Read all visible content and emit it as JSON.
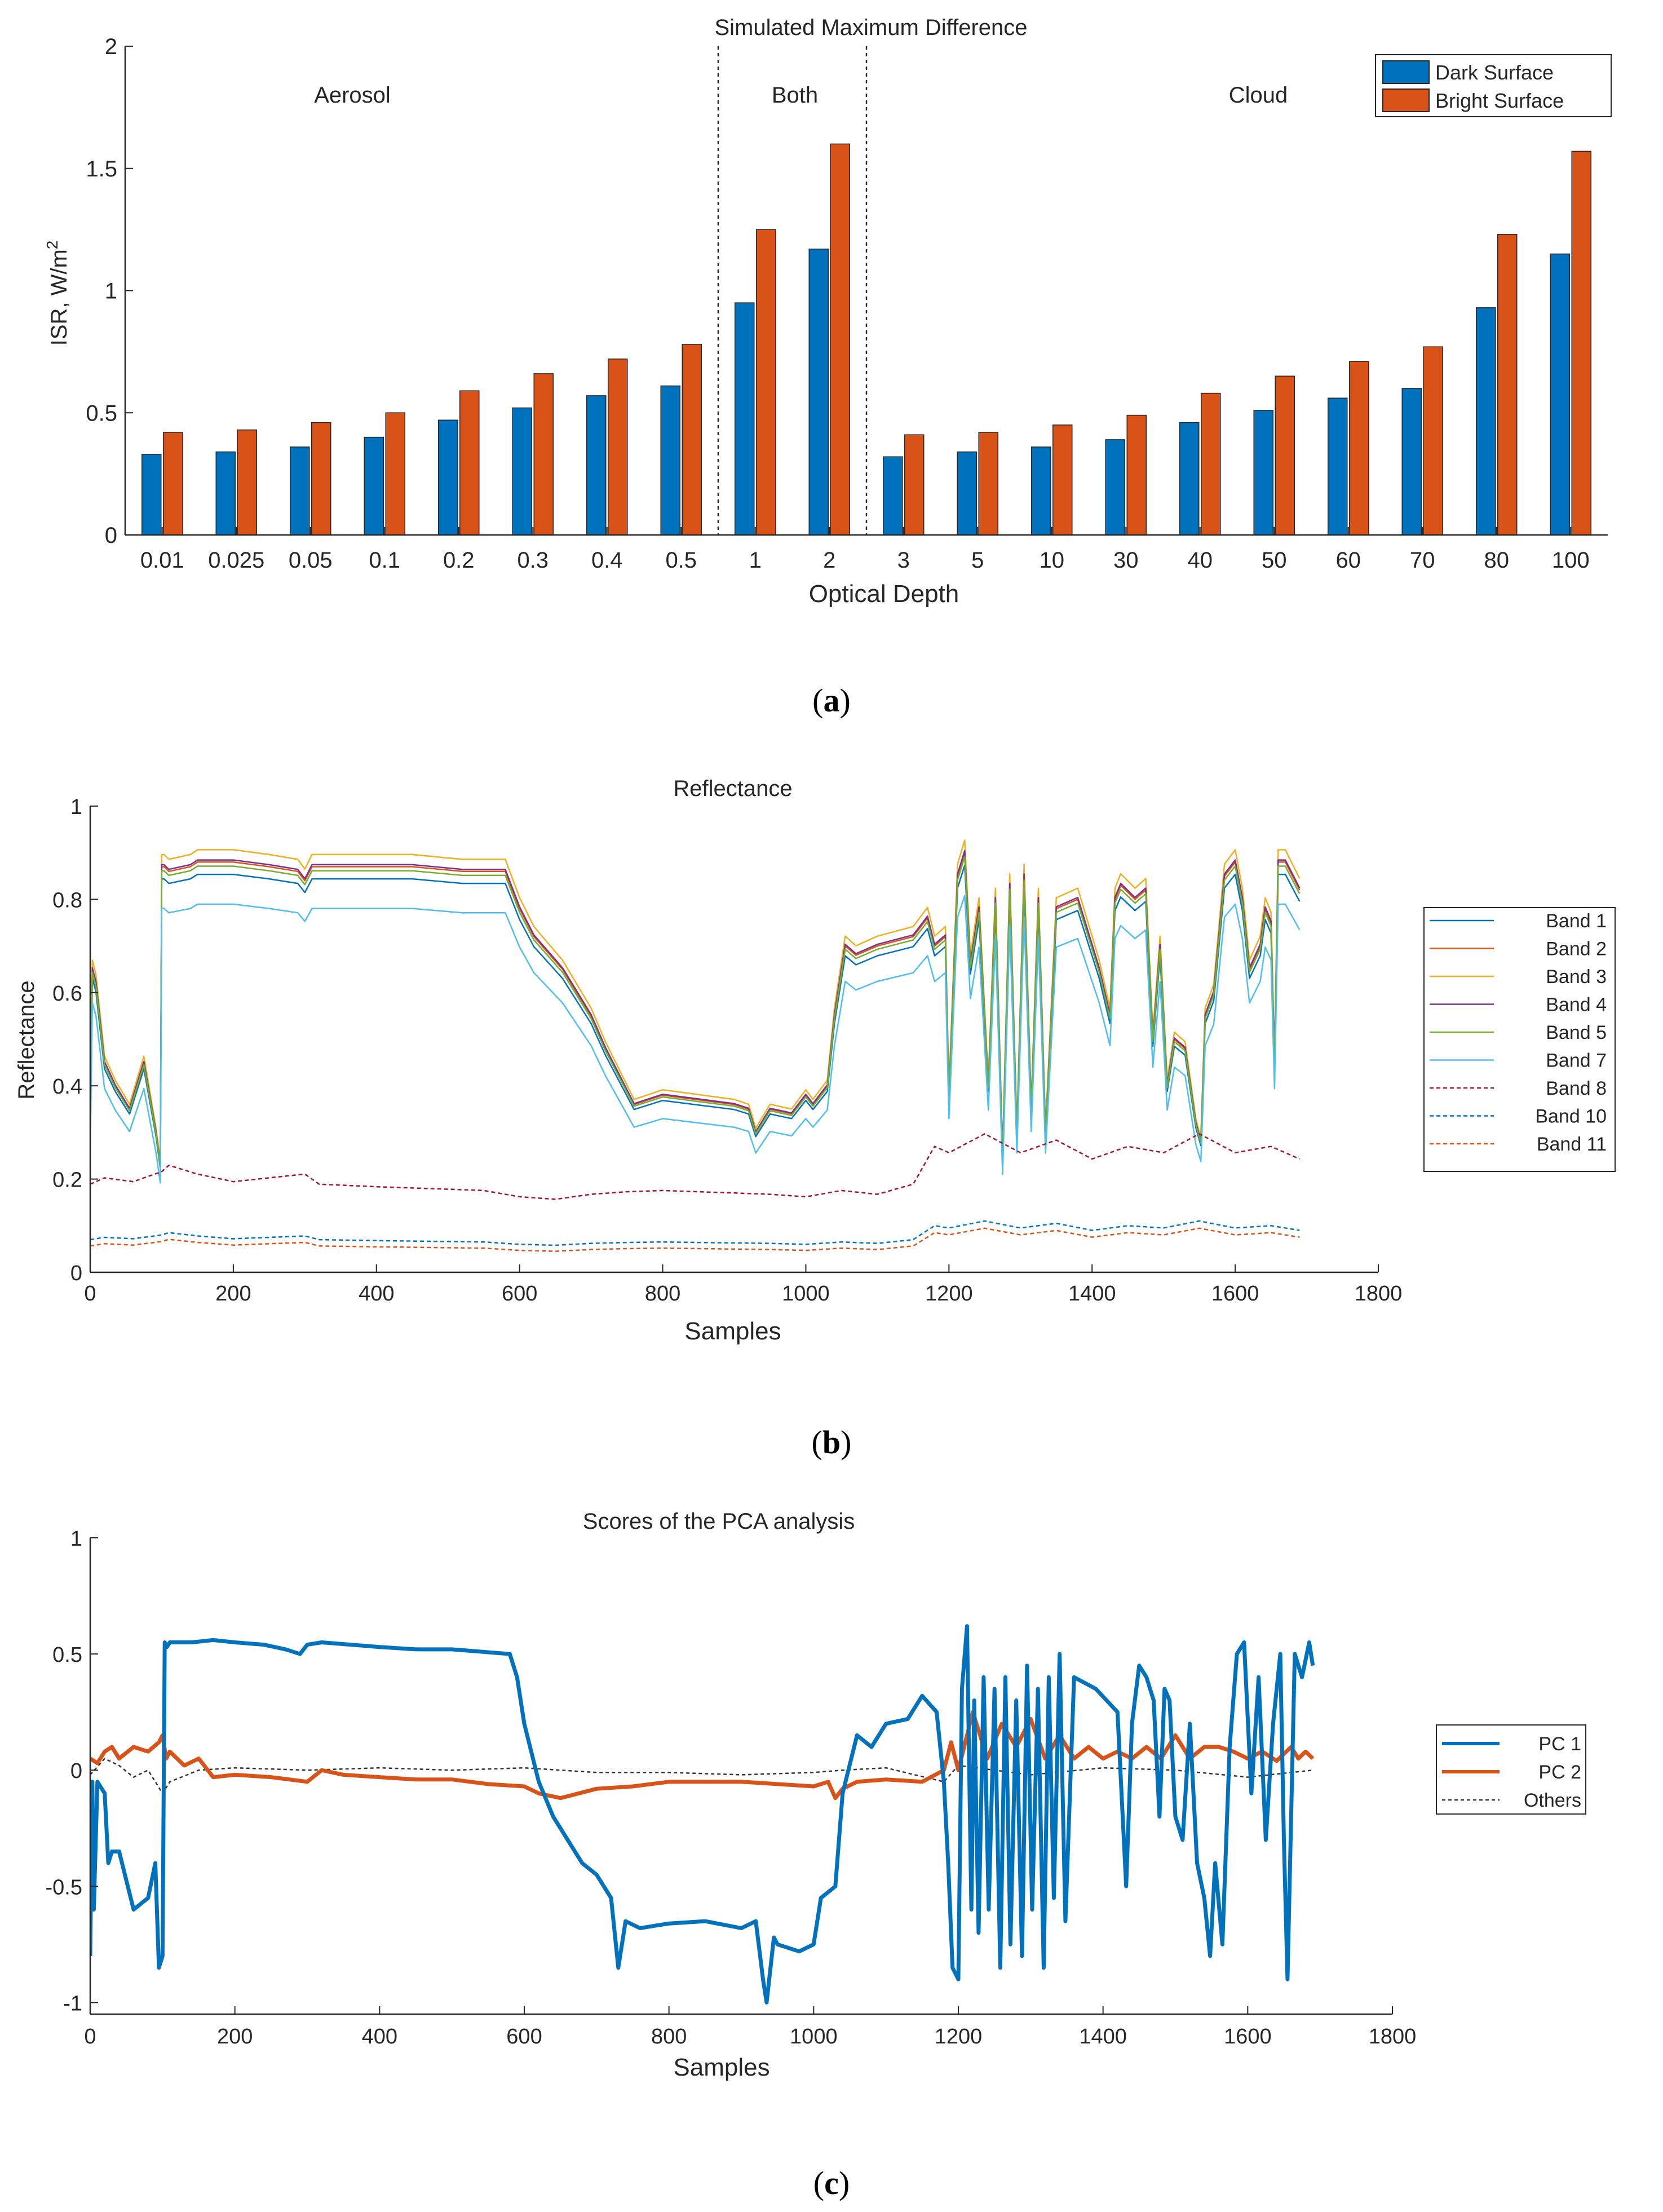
{
  "colors": {
    "blue": "#0072BD",
    "orange": "#D95319",
    "axis": "#262626",
    "band_1": "#0072BD",
    "band_2": "#D95319",
    "band_3": "#EDB120",
    "band_4": "#7E2F8E",
    "band_5": "#77AC30",
    "band_7": "#4DBEEE",
    "band_8": "#A2142F",
    "band_10": "#0072BD",
    "band_11": "#D95319",
    "others": "#333333"
  },
  "chart_data": [
    {
      "type": "bar",
      "title": "Simulated Maximum Difference",
      "xlabel": "Optical Depth",
      "ylabel": "ISR, W/m",
      "ylabel_superscript": "2",
      "ylim": [
        0,
        2
      ],
      "yticks": [
        "0",
        "0.5",
        "1",
        "1.5",
        "2"
      ],
      "categories": [
        "0.01",
        "0.025",
        "0.05",
        "0.1",
        "0.2",
        "0.3",
        "0.4",
        "0.5",
        "1",
        "2",
        "3",
        "5",
        "10",
        "30",
        "40",
        "50",
        "60",
        "70",
        "80",
        "100"
      ],
      "series": [
        {
          "name": "Dark Surface",
          "values": [
            0.33,
            0.34,
            0.36,
            0.4,
            0.47,
            0.52,
            0.57,
            0.61,
            0.95,
            1.17,
            0.32,
            0.34,
            0.36,
            0.39,
            0.46,
            0.51,
            0.56,
            0.6,
            0.93,
            1.15
          ]
        },
        {
          "name": "Bright Surface",
          "values": [
            0.42,
            0.43,
            0.46,
            0.5,
            0.59,
            0.66,
            0.72,
            0.78,
            1.25,
            1.6,
            0.41,
            0.42,
            0.45,
            0.49,
            0.58,
            0.65,
            0.71,
            0.77,
            1.23,
            1.57
          ]
        }
      ],
      "region_labels": [
        "Aerosol",
        "Both",
        "Cloud"
      ],
      "region_dividers_after_category": [
        7,
        9
      ],
      "legend_position": "top-right",
      "grid": false,
      "caption": "a"
    },
    {
      "type": "line",
      "title": "Reflectance",
      "xlabel": "Samples",
      "ylabel": "Reflectance",
      "xlim": [
        0,
        1800
      ],
      "ylim": [
        0,
        1
      ],
      "xticks": [
        "0",
        "200",
        "400",
        "600",
        "800",
        "1000",
        "1200",
        "1400",
        "1600",
        "1800"
      ],
      "yticks": [
        "0",
        "0.2",
        "0.4",
        "0.6",
        "0.8",
        "1"
      ],
      "legend_position": "outside-right",
      "grid": false,
      "caption": "b",
      "base_profile": {
        "x": [
          0,
          3,
          8,
          20,
          35,
          55,
          75,
          92,
          98,
          100,
          103,
          110,
          140,
          150,
          170,
          200,
          250,
          290,
          300,
          310,
          330,
          380,
          450,
          520,
          580,
          600,
          620,
          660,
          700,
          720,
          740,
          760,
          800,
          850,
          900,
          920,
          930,
          950,
          980,
          1000,
          1010,
          1030,
          1040,
          1055,
          1070,
          1100,
          1150,
          1170,
          1180,
          1195,
          1200,
          1212,
          1222,
          1230,
          1242,
          1255,
          1265,
          1275,
          1285,
          1295,
          1305,
          1315,
          1325,
          1335,
          1350,
          1380,
          1410,
          1425,
          1432,
          1440,
          1460,
          1475,
          1485,
          1495,
          1500,
          1505,
          1515,
          1530,
          1545,
          1552,
          1558,
          1570,
          1585,
          1600,
          1610,
          1620,
          1635,
          1642,
          1650,
          1655,
          1660,
          1670,
          1680,
          1690
        ],
        "y": [
          0.3,
          0.65,
          0.62,
          0.45,
          0.4,
          0.35,
          0.45,
          0.3,
          0.23,
          0.87,
          0.87,
          0.86,
          0.87,
          0.88,
          0.88,
          0.88,
          0.87,
          0.86,
          0.84,
          0.87,
          0.87,
          0.87,
          0.87,
          0.86,
          0.86,
          0.78,
          0.72,
          0.65,
          0.55,
          0.48,
          0.42,
          0.36,
          0.38,
          0.37,
          0.36,
          0.35,
          0.3,
          0.35,
          0.34,
          0.38,
          0.36,
          0.4,
          0.55,
          0.7,
          0.68,
          0.7,
          0.72,
          0.76,
          0.7,
          0.72,
          0.38,
          0.85,
          0.9,
          0.66,
          0.78,
          0.4,
          0.8,
          0.25,
          0.83,
          0.3,
          0.85,
          0.35,
          0.8,
          0.3,
          0.78,
          0.8,
          0.65,
          0.55,
          0.8,
          0.83,
          0.8,
          0.82,
          0.5,
          0.7,
          0.55,
          0.4,
          0.5,
          0.48,
          0.32,
          0.28,
          0.55,
          0.6,
          0.85,
          0.88,
          0.8,
          0.65,
          0.7,
          0.78,
          0.75,
          0.45,
          0.88,
          0.88,
          0.85,
          0.82
        ]
      },
      "low_profile": {
        "x": [
          0,
          20,
          60,
          100,
          110,
          150,
          200,
          300,
          320,
          400,
          500,
          550,
          600,
          650,
          700,
          750,
          800,
          850,
          900,
          950,
          1000,
          1050,
          1100,
          1150,
          1180,
          1200,
          1250,
          1300,
          1350,
          1400,
          1450,
          1500,
          1550,
          1600,
          1650,
          1690
        ],
        "y": [
          0.7,
          0.75,
          0.72,
          0.8,
          0.85,
          0.78,
          0.72,
          0.78,
          0.7,
          0.68,
          0.66,
          0.65,
          0.6,
          0.58,
          0.62,
          0.64,
          0.65,
          0.64,
          0.63,
          0.62,
          0.6,
          0.65,
          0.62,
          0.7,
          1.0,
          0.95,
          1.1,
          0.95,
          1.05,
          0.9,
          1.0,
          0.95,
          1.1,
          0.95,
          1.0,
          0.9
        ]
      },
      "series": [
        {
          "name": "Band 1",
          "style": "solid",
          "scale": 0.97,
          "offset": 0.0
        },
        {
          "name": "Band 2",
          "style": "solid",
          "scale": 1.0,
          "offset": 0.0
        },
        {
          "name": "Band 3",
          "style": "solid",
          "scale": 1.03,
          "offset": 0.0
        },
        {
          "name": "Band 4",
          "style": "solid",
          "scale": 1.005,
          "offset": 0.0
        },
        {
          "name": "Band 5",
          "style": "solid",
          "scale": 0.99,
          "offset": 0.0
        },
        {
          "name": "Band 7",
          "style": "solid",
          "scale": 0.92,
          "offset": -0.02
        },
        {
          "name": "Band 8",
          "style": "dashed",
          "scale": 0.27,
          "offset": 0.0
        },
        {
          "name": "Band 10",
          "style": "dashed",
          "scale": 0.1,
          "offset": 0.0
        },
        {
          "name": "Band 11",
          "style": "dashed",
          "scale": 0.095,
          "offset": -0.01
        }
      ]
    },
    {
      "type": "line",
      "title": "Scores of the PCA analysis",
      "xlabel": "Samples",
      "ylabel": "",
      "xlim": [
        0,
        1800
      ],
      "ylim": [
        -1.05,
        1
      ],
      "xticks": [
        "0",
        "200",
        "400",
        "600",
        "800",
        "1000",
        "1200",
        "1400",
        "1600",
        "1800"
      ],
      "yticks": [
        "-1",
        "-0.5",
        "0",
        "0.5",
        "1"
      ],
      "legend_position": "outside-right",
      "grid": false,
      "caption": "c",
      "series": [
        {
          "name": "PC 1",
          "style": "thick",
          "x": [
            0,
            3,
            5,
            10,
            20,
            25,
            30,
            40,
            60,
            80,
            90,
            95,
            100,
            103,
            106,
            110,
            140,
            170,
            200,
            240,
            270,
            290,
            300,
            320,
            360,
            400,
            450,
            500,
            540,
            580,
            590,
            600,
            620,
            640,
            660,
            680,
            700,
            720,
            730,
            740,
            760,
            800,
            850,
            900,
            920,
            930,
            935,
            945,
            950,
            980,
            1000,
            1010,
            1030,
            1040,
            1060,
            1080,
            1100,
            1130,
            1150,
            1170,
            1180,
            1186,
            1192,
            1200,
            1205,
            1212,
            1218,
            1222,
            1228,
            1235,
            1242,
            1250,
            1258,
            1265,
            1272,
            1280,
            1288,
            1295,
            1302,
            1310,
            1318,
            1325,
            1332,
            1340,
            1348,
            1360,
            1390,
            1420,
            1432,
            1440,
            1450,
            1460,
            1470,
            1478,
            1485,
            1492,
            1500,
            1510,
            1520,
            1530,
            1540,
            1548,
            1555,
            1565,
            1575,
            1585,
            1595,
            1605,
            1615,
            1625,
            1635,
            1645,
            1650,
            1655,
            1665,
            1675,
            1685,
            1690
          ],
          "y": [
            -0.8,
            -0.05,
            -0.6,
            -0.05,
            -0.1,
            -0.4,
            -0.35,
            -0.35,
            -0.6,
            -0.55,
            -0.4,
            -0.85,
            -0.8,
            0.55,
            0.53,
            0.55,
            0.55,
            0.56,
            0.55,
            0.54,
            0.52,
            0.5,
            0.54,
            0.55,
            0.54,
            0.53,
            0.52,
            0.52,
            0.51,
            0.5,
            0.4,
            0.2,
            -0.05,
            -0.2,
            -0.3,
            -0.4,
            -0.45,
            -0.55,
            -0.85,
            -0.65,
            -0.68,
            -0.66,
            -0.65,
            -0.68,
            -0.65,
            -0.9,
            -1.0,
            -0.72,
            -0.75,
            -0.78,
            -0.75,
            -0.55,
            -0.5,
            -0.1,
            0.15,
            0.1,
            0.2,
            0.22,
            0.32,
            0.25,
            -0.05,
            -0.4,
            -0.85,
            -0.9,
            0.35,
            0.62,
            -0.6,
            0.3,
            -0.7,
            0.4,
            -0.6,
            0.35,
            -0.85,
            0.4,
            -0.75,
            0.3,
            -0.8,
            0.45,
            -0.6,
            0.35,
            -0.85,
            0.4,
            -0.55,
            0.5,
            -0.65,
            0.4,
            0.35,
            0.25,
            -0.5,
            0.2,
            0.45,
            0.4,
            0.3,
            -0.2,
            0.35,
            0.3,
            -0.2,
            -0.3,
            0.2,
            -0.4,
            -0.55,
            -0.8,
            -0.4,
            -0.75,
            0.1,
            0.5,
            0.55,
            -0.1,
            0.4,
            -0.3,
            0.2,
            0.5,
            -0.3,
            -0.9,
            0.5,
            0.4,
            0.55,
            0.45
          ]
        },
        {
          "name": "PC 2",
          "style": "thick",
          "x": [
            0,
            10,
            20,
            30,
            40,
            60,
            80,
            95,
            100,
            105,
            110,
            130,
            150,
            170,
            200,
            250,
            300,
            320,
            350,
            400,
            450,
            500,
            550,
            600,
            620,
            650,
            700,
            750,
            800,
            850,
            900,
            950,
            1000,
            1020,
            1030,
            1040,
            1060,
            1100,
            1150,
            1180,
            1190,
            1200,
            1220,
            1240,
            1260,
            1280,
            1300,
            1320,
            1340,
            1360,
            1380,
            1400,
            1420,
            1440,
            1460,
            1480,
            1500,
            1520,
            1540,
            1560,
            1580,
            1600,
            1620,
            1640,
            1660,
            1670,
            1680,
            1690
          ],
          "y": [
            0.05,
            0.03,
            0.08,
            0.1,
            0.05,
            0.1,
            0.08,
            0.12,
            0.15,
            0.05,
            0.08,
            0.02,
            0.05,
            -0.03,
            -0.02,
            -0.03,
            -0.05,
            0.0,
            -0.02,
            -0.03,
            -0.04,
            -0.04,
            -0.06,
            -0.07,
            -0.1,
            -0.12,
            -0.08,
            -0.07,
            -0.05,
            -0.05,
            -0.05,
            -0.06,
            -0.07,
            -0.05,
            -0.12,
            -0.08,
            -0.05,
            -0.04,
            -0.05,
            0.0,
            0.12,
            0.0,
            0.25,
            0.05,
            0.2,
            0.1,
            0.22,
            0.05,
            0.15,
            0.05,
            0.1,
            0.05,
            0.08,
            0.05,
            0.1,
            0.05,
            0.15,
            0.05,
            0.1,
            0.1,
            0.08,
            0.05,
            0.08,
            0.04,
            0.1,
            0.05,
            0.08,
            0.05
          ]
        },
        {
          "name": "Others",
          "style": "dashed",
          "x": [
            0,
            20,
            40,
            60,
            80,
            100,
            110,
            150,
            200,
            300,
            400,
            500,
            600,
            700,
            800,
            900,
            1000,
            1040,
            1100,
            1180,
            1200,
            1300,
            1400,
            1500,
            1600,
            1690
          ],
          "y": [
            -0.02,
            0.05,
            0.02,
            -0.03,
            0.0,
            -0.1,
            -0.05,
            0.0,
            0.01,
            0.0,
            0.01,
            0.0,
            0.01,
            -0.01,
            -0.01,
            -0.02,
            -0.01,
            0.0,
            0.01,
            -0.05,
            0.02,
            -0.02,
            0.01,
            0.0,
            -0.03,
            0.0
          ]
        }
      ]
    }
  ],
  "captions": [
    "a",
    "b",
    "c"
  ]
}
